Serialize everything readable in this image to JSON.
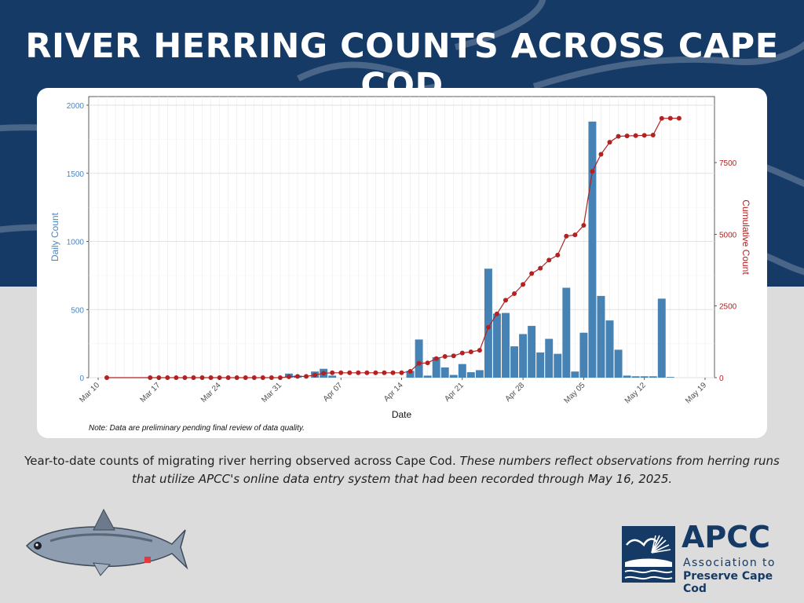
{
  "header": {
    "title": "RIVER HERRING COUNTS ACROSS CAPE COD"
  },
  "note": "Note: Data are preliminary pending final review of data quality.",
  "caption": {
    "regular": "Year-to-date counts of migrating river herring observed across Cape Cod.",
    "italic": "These numbers reflect observations from herring runs that utilize APCC's online data entry system that had been recorded through May 16, 2025."
  },
  "logo": {
    "abbr": "APCC",
    "line1": "Association to",
    "line2": "Preserve Cape Cod"
  },
  "colors": {
    "header_bg": "#163a66",
    "bar": "#4682b4",
    "line": "#b22222",
    "left_axis_text": "#4a86c5",
    "right_axis_text": "#b22222"
  },
  "icons": {
    "fish": "river-herring-illustration",
    "logo": "apcc-logo-mark"
  },
  "chart_data": {
    "type": "bar+line",
    "xlabel": "Date",
    "ylabel_left": "Daily Count",
    "ylabel_right": "Cumulative Count",
    "xlim": [
      "2025-03-10",
      "2025-05-19"
    ],
    "ylim_left": [
      0,
      2000
    ],
    "ylim_right": [
      0,
      9500
    ],
    "x_ticks": [
      "Mar 10",
      "Mar 17",
      "Mar 24",
      "Mar 31",
      "Apr 07",
      "Apr 14",
      "Apr 21",
      "Apr 28",
      "May 05",
      "May 12",
      "May 19"
    ],
    "y_ticks_left": [
      0,
      500,
      1000,
      1500,
      2000
    ],
    "y_ticks_right": [
      0,
      2500,
      5000,
      7500
    ],
    "grid": true,
    "series": [
      {
        "name": "Daily Count",
        "type": "bar",
        "axis": "left",
        "points": [
          {
            "date": "2025-04-01",
            "value": 30
          },
          {
            "date": "2025-04-02",
            "value": 15
          },
          {
            "date": "2025-04-04",
            "value": 45
          },
          {
            "date": "2025-04-05",
            "value": 65
          },
          {
            "date": "2025-04-06",
            "value": 15
          },
          {
            "date": "2025-04-15",
            "value": 50
          },
          {
            "date": "2025-04-16",
            "value": 280
          },
          {
            "date": "2025-04-17",
            "value": 15
          },
          {
            "date": "2025-04-18",
            "value": 150
          },
          {
            "date": "2025-04-19",
            "value": 75
          },
          {
            "date": "2025-04-20",
            "value": 20
          },
          {
            "date": "2025-04-21",
            "value": 100
          },
          {
            "date": "2025-04-22",
            "value": 40
          },
          {
            "date": "2025-04-23",
            "value": 55
          },
          {
            "date": "2025-04-24",
            "value": 800
          },
          {
            "date": "2025-04-25",
            "value": 470
          },
          {
            "date": "2025-04-26",
            "value": 475
          },
          {
            "date": "2025-04-27",
            "value": 230
          },
          {
            "date": "2025-04-28",
            "value": 320
          },
          {
            "date": "2025-04-29",
            "value": 380
          },
          {
            "date": "2025-04-30",
            "value": 185
          },
          {
            "date": "2025-05-01",
            "value": 285
          },
          {
            "date": "2025-05-02",
            "value": 175
          },
          {
            "date": "2025-05-03",
            "value": 660
          },
          {
            "date": "2025-05-04",
            "value": 45
          },
          {
            "date": "2025-05-05",
            "value": 330
          },
          {
            "date": "2025-05-06",
            "value": 1880
          },
          {
            "date": "2025-05-07",
            "value": 600
          },
          {
            "date": "2025-05-08",
            "value": 420
          },
          {
            "date": "2025-05-09",
            "value": 205
          },
          {
            "date": "2025-05-10",
            "value": 15
          },
          {
            "date": "2025-05-11",
            "value": 10
          },
          {
            "date": "2025-05-12",
            "value": 10
          },
          {
            "date": "2025-05-13",
            "value": 10
          },
          {
            "date": "2025-05-14",
            "value": 580
          },
          {
            "date": "2025-05-15",
            "value": 5
          }
        ]
      },
      {
        "name": "Cumulative Count",
        "type": "line",
        "axis": "right",
        "points": [
          {
            "date": "2025-03-11",
            "value": 0
          },
          {
            "date": "2025-03-16",
            "value": 0
          },
          {
            "date": "2025-03-17",
            "value": 0
          },
          {
            "date": "2025-03-18",
            "value": 0
          },
          {
            "date": "2025-03-19",
            "value": 0
          },
          {
            "date": "2025-03-20",
            "value": 0
          },
          {
            "date": "2025-03-21",
            "value": 0
          },
          {
            "date": "2025-03-22",
            "value": 0
          },
          {
            "date": "2025-03-23",
            "value": 0
          },
          {
            "date": "2025-03-24",
            "value": 0
          },
          {
            "date": "2025-03-25",
            "value": 0
          },
          {
            "date": "2025-03-26",
            "value": 0
          },
          {
            "date": "2025-03-27",
            "value": 0
          },
          {
            "date": "2025-03-28",
            "value": 0
          },
          {
            "date": "2025-03-29",
            "value": 0
          },
          {
            "date": "2025-03-30",
            "value": 0
          },
          {
            "date": "2025-03-31",
            "value": 0
          },
          {
            "date": "2025-04-01",
            "value": 30
          },
          {
            "date": "2025-04-02",
            "value": 45
          },
          {
            "date": "2025-04-03",
            "value": 45
          },
          {
            "date": "2025-04-04",
            "value": 90
          },
          {
            "date": "2025-04-05",
            "value": 155
          },
          {
            "date": "2025-04-06",
            "value": 170
          },
          {
            "date": "2025-04-07",
            "value": 170
          },
          {
            "date": "2025-04-08",
            "value": 170
          },
          {
            "date": "2025-04-09",
            "value": 170
          },
          {
            "date": "2025-04-10",
            "value": 170
          },
          {
            "date": "2025-04-11",
            "value": 170
          },
          {
            "date": "2025-04-12",
            "value": 170
          },
          {
            "date": "2025-04-13",
            "value": 170
          },
          {
            "date": "2025-04-14",
            "value": 170
          },
          {
            "date": "2025-04-15",
            "value": 220
          },
          {
            "date": "2025-04-16",
            "value": 500
          },
          {
            "date": "2025-04-17",
            "value": 515
          },
          {
            "date": "2025-04-18",
            "value": 665
          },
          {
            "date": "2025-04-19",
            "value": 740
          },
          {
            "date": "2025-04-20",
            "value": 760
          },
          {
            "date": "2025-04-21",
            "value": 860
          },
          {
            "date": "2025-04-22",
            "value": 900
          },
          {
            "date": "2025-04-23",
            "value": 955
          },
          {
            "date": "2025-04-24",
            "value": 1755
          },
          {
            "date": "2025-04-25",
            "value": 2225
          },
          {
            "date": "2025-04-26",
            "value": 2700
          },
          {
            "date": "2025-04-27",
            "value": 2930
          },
          {
            "date": "2025-04-28",
            "value": 3250
          },
          {
            "date": "2025-04-29",
            "value": 3630
          },
          {
            "date": "2025-04-30",
            "value": 3815
          },
          {
            "date": "2025-05-01",
            "value": 4100
          },
          {
            "date": "2025-05-02",
            "value": 4275
          },
          {
            "date": "2025-05-03",
            "value": 4935
          },
          {
            "date": "2025-05-04",
            "value": 4980
          },
          {
            "date": "2025-05-05",
            "value": 5310
          },
          {
            "date": "2025-05-06",
            "value": 7190
          },
          {
            "date": "2025-05-07",
            "value": 7790
          },
          {
            "date": "2025-05-08",
            "value": 8210
          },
          {
            "date": "2025-05-09",
            "value": 8415
          },
          {
            "date": "2025-05-10",
            "value": 8430
          },
          {
            "date": "2025-05-11",
            "value": 8440
          },
          {
            "date": "2025-05-12",
            "value": 8450
          },
          {
            "date": "2025-05-13",
            "value": 8460
          },
          {
            "date": "2025-05-14",
            "value": 9040
          },
          {
            "date": "2025-05-15",
            "value": 9045
          },
          {
            "date": "2025-05-16",
            "value": 9045
          }
        ]
      }
    ]
  }
}
